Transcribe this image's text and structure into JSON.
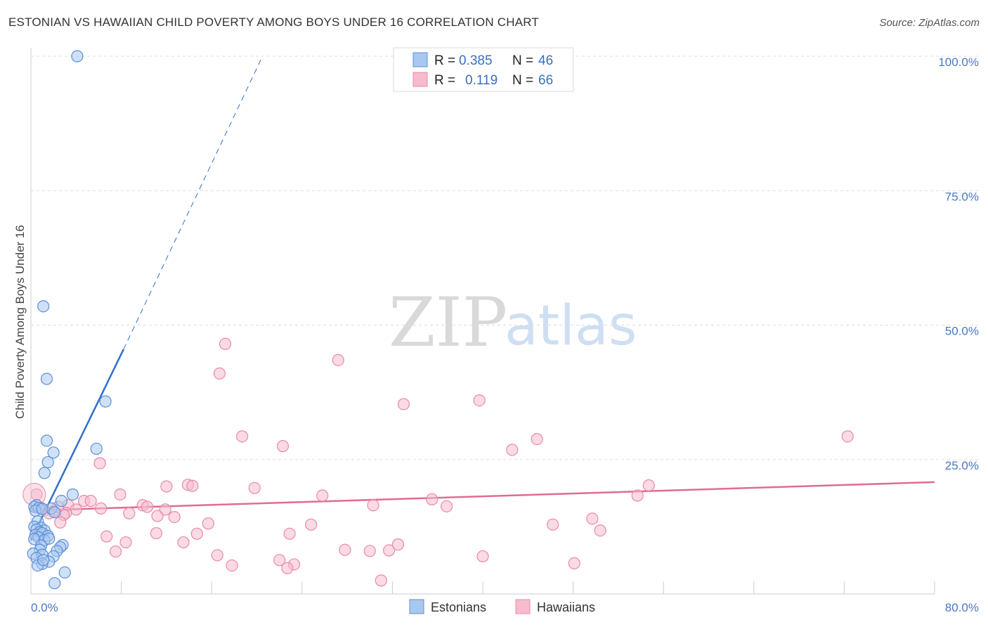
{
  "header": {
    "title": "ESTONIAN VS HAWAIIAN CHILD POVERTY AMONG BOYS UNDER 16 CORRELATION CHART",
    "source": "Source: ZipAtlas.com"
  },
  "watermark": {
    "zip": "ZIP",
    "atlas": "atlas"
  },
  "colors": {
    "estonian_fill": "#a9c8f0",
    "estonian_stroke": "#5b8fd6",
    "estonian_line": "#2e6fcf",
    "hawaiian_fill": "#f6bccd",
    "hawaiian_stroke": "#e88aa6",
    "hawaiian_line": "#e06b94",
    "grid": "#dddddd",
    "tick_text": "#4a78c2"
  },
  "legend": {
    "r_label": "R =",
    "n_label": "N =",
    "estonian_r": "0.385",
    "estonian_n": "46",
    "hawaiian_r": "0.119",
    "hawaiian_n": "66"
  },
  "chart_data": {
    "type": "scatter",
    "title": "ESTONIAN VS HAWAIIAN CHILD POVERTY AMONG BOYS UNDER 16 CORRELATION CHART",
    "xlabel": "",
    "ylabel": "Child Poverty Among Boys Under 16",
    "xlim": [
      0,
      80
    ],
    "ylim": [
      0,
      100
    ],
    "x_tick_labels": [
      "0.0%",
      "80.0%"
    ],
    "y_ticks": [
      25,
      50,
      75,
      100
    ],
    "y_tick_labels": [
      "25.0%",
      "50.0%",
      "75.0%",
      "100.0%"
    ],
    "legend_position": "top-center",
    "series": [
      {
        "name": "Estonians",
        "r": 0.385,
        "n": 46,
        "trend": {
          "x0": 0.0,
          "y0": 10.0,
          "x1": 8.2,
          "y1": 45.5,
          "dash_to_x": 20.5,
          "dash_to_y": 100.0
        },
        "points": [
          [
            4.1,
            100.0
          ],
          [
            1.1,
            53.5
          ],
          [
            1.4,
            40.0
          ],
          [
            6.6,
            35.8
          ],
          [
            1.4,
            28.5
          ],
          [
            5.8,
            27.0
          ],
          [
            2.0,
            26.3
          ],
          [
            1.5,
            24.5
          ],
          [
            1.2,
            22.5
          ],
          [
            3.7,
            18.5
          ],
          [
            2.7,
            17.3
          ],
          [
            0.5,
            16.5
          ],
          [
            0.3,
            16.2
          ],
          [
            0.7,
            16.0
          ],
          [
            1.8,
            15.9
          ],
          [
            0.4,
            15.5
          ],
          [
            2.1,
            15.2
          ],
          [
            1.0,
            15.8
          ],
          [
            0.6,
            13.5
          ],
          [
            0.3,
            12.5
          ],
          [
            0.9,
            12.3
          ],
          [
            0.5,
            12.0
          ],
          [
            1.2,
            11.8
          ],
          [
            0.8,
            11.5
          ],
          [
            0.4,
            11.0
          ],
          [
            1.0,
            11.3
          ],
          [
            1.5,
            10.8
          ],
          [
            0.7,
            10.5
          ],
          [
            0.3,
            10.2
          ],
          [
            1.2,
            10.0
          ],
          [
            1.6,
            10.3
          ],
          [
            0.9,
            9.0
          ],
          [
            2.8,
            9.1
          ],
          [
            2.6,
            8.7
          ],
          [
            0.8,
            8.2
          ],
          [
            2.3,
            8.0
          ],
          [
            0.2,
            7.5
          ],
          [
            1.0,
            7.3
          ],
          [
            2.0,
            7.0
          ],
          [
            0.5,
            6.7
          ],
          [
            1.6,
            6.0
          ],
          [
            1.0,
            5.6
          ],
          [
            0.6,
            5.3
          ],
          [
            3.0,
            4.0
          ],
          [
            2.1,
            2.0
          ],
          [
            1.1,
            6.3
          ]
        ]
      },
      {
        "name": "Hawaiians",
        "r": 0.119,
        "n": 66,
        "trend": {
          "x0": 0.0,
          "y0": 15.5,
          "x1": 80.0,
          "y1": 20.8
        },
        "points": [
          [
            17.2,
            46.5
          ],
          [
            27.2,
            43.5
          ],
          [
            16.7,
            41.0
          ],
          [
            39.7,
            36.0
          ],
          [
            33.0,
            35.3
          ],
          [
            72.3,
            29.3
          ],
          [
            18.7,
            29.3
          ],
          [
            44.8,
            28.8
          ],
          [
            22.3,
            27.5
          ],
          [
            42.6,
            26.8
          ],
          [
            6.1,
            24.3
          ],
          [
            13.9,
            20.3
          ],
          [
            14.3,
            20.1
          ],
          [
            12.0,
            20.0
          ],
          [
            19.8,
            19.7
          ],
          [
            54.7,
            20.2
          ],
          [
            7.9,
            18.5
          ],
          [
            25.8,
            18.3
          ],
          [
            53.7,
            18.3
          ],
          [
            0.5,
            18.5
          ],
          [
            35.5,
            17.6
          ],
          [
            4.7,
            17.3
          ],
          [
            5.3,
            17.3
          ],
          [
            3.3,
            16.5
          ],
          [
            9.9,
            16.5
          ],
          [
            10.3,
            16.2
          ],
          [
            6.2,
            15.9
          ],
          [
            11.9,
            15.7
          ],
          [
            30.3,
            16.5
          ],
          [
            36.8,
            16.3
          ],
          [
            4.0,
            15.7
          ],
          [
            1.2,
            15.6
          ],
          [
            2.0,
            15.4
          ],
          [
            3.1,
            15.1
          ],
          [
            8.7,
            15.0
          ],
          [
            11.2,
            14.5
          ],
          [
            12.7,
            14.3
          ],
          [
            2.9,
            14.7
          ],
          [
            2.6,
            13.3
          ],
          [
            15.7,
            13.1
          ],
          [
            24.8,
            12.9
          ],
          [
            46.2,
            12.9
          ],
          [
            49.7,
            14.0
          ],
          [
            50.4,
            11.8
          ],
          [
            11.1,
            11.3
          ],
          [
            14.7,
            11.2
          ],
          [
            22.9,
            11.2
          ],
          [
            6.7,
            10.7
          ],
          [
            8.4,
            9.6
          ],
          [
            13.5,
            9.6
          ],
          [
            32.5,
            9.2
          ],
          [
            27.8,
            8.2
          ],
          [
            30.0,
            8.0
          ],
          [
            31.7,
            8.1
          ],
          [
            7.5,
            7.9
          ],
          [
            16.5,
            7.2
          ],
          [
            22.0,
            6.3
          ],
          [
            40.0,
            7.0
          ],
          [
            48.1,
            5.7
          ],
          [
            17.8,
            5.3
          ],
          [
            23.3,
            5.5
          ],
          [
            22.7,
            4.8
          ],
          [
            31.0,
            2.5
          ],
          [
            0.9,
            16.0
          ],
          [
            1.6,
            15.0
          ],
          [
            2.4,
            16.2
          ]
        ]
      }
    ]
  },
  "bottom_legend": {
    "estonians": "Estonians",
    "hawaiians": "Hawaiians"
  }
}
